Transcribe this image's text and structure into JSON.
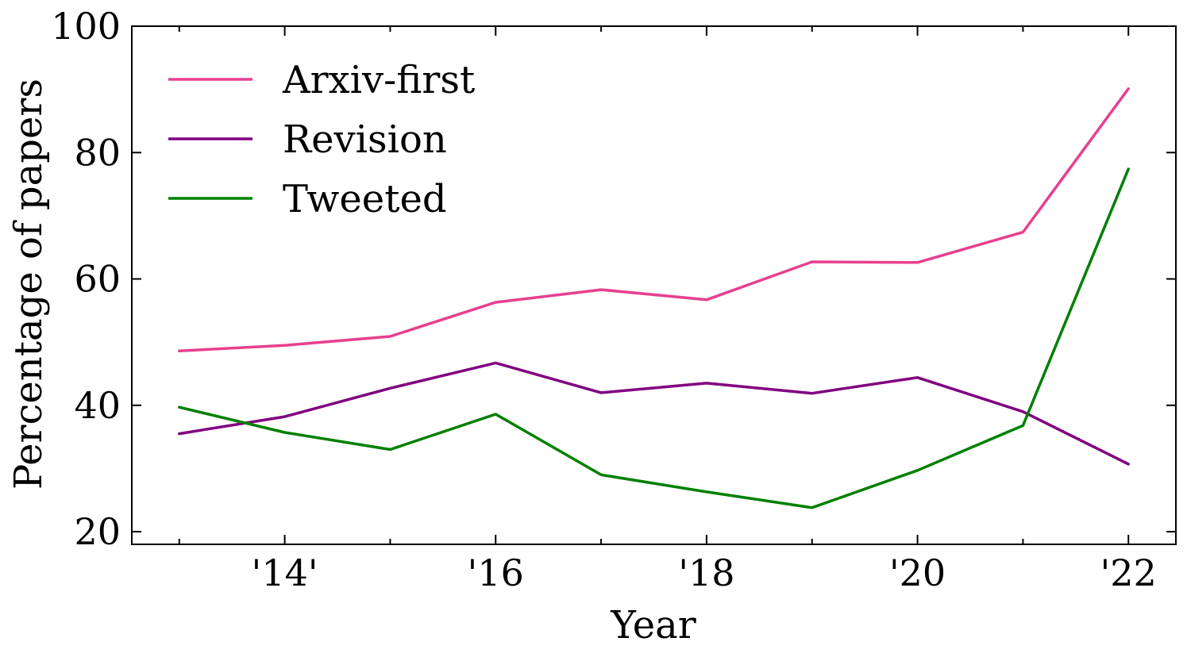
{
  "chart_data": {
    "type": "line",
    "title": "",
    "xlabel": "Year",
    "ylabel": "Percentage of papers",
    "x": [
      2013,
      2014,
      2015,
      2016,
      2017,
      2018,
      2019,
      2020,
      2021,
      2022
    ],
    "xlim": [
      2012.55,
      2022.45
    ],
    "ylim": [
      18,
      100
    ],
    "x_ticks": [
      {
        "value": 2014,
        "label": "'14'"
      },
      {
        "value": 2016,
        "label": "'16"
      },
      {
        "value": 2018,
        "label": "'18"
      },
      {
        "value": 2020,
        "label": "'20"
      },
      {
        "value": 2022,
        "label": "'22"
      }
    ],
    "x_minor_ticks": [
      2013,
      2015,
      2017,
      2019,
      2021
    ],
    "y_ticks": [
      {
        "value": 20,
        "label": "20"
      },
      {
        "value": 40,
        "label": "40"
      },
      {
        "value": 60,
        "label": "60"
      },
      {
        "value": 80,
        "label": "80"
      },
      {
        "value": 100,
        "label": "100"
      }
    ],
    "grid": false,
    "legend_position": "top-left",
    "series": [
      {
        "name": "Arxiv-first",
        "color": "#e7408f",
        "values": [
          48.6,
          49.5,
          50.9,
          56.3,
          58.3,
          56.7,
          62.7,
          62.6,
          67.4,
          90.1
        ]
      },
      {
        "name": "Revision",
        "color": "#800080",
        "values": [
          35.5,
          38.2,
          42.7,
          46.7,
          42.0,
          43.5,
          41.9,
          44.4,
          39.0,
          30.7
        ]
      },
      {
        "name": "Tweeted",
        "color": "#008000",
        "values": [
          39.7,
          35.7,
          33.0,
          38.6,
          29.0,
          26.3,
          23.8,
          29.7,
          36.8,
          77.4
        ]
      }
    ]
  }
}
